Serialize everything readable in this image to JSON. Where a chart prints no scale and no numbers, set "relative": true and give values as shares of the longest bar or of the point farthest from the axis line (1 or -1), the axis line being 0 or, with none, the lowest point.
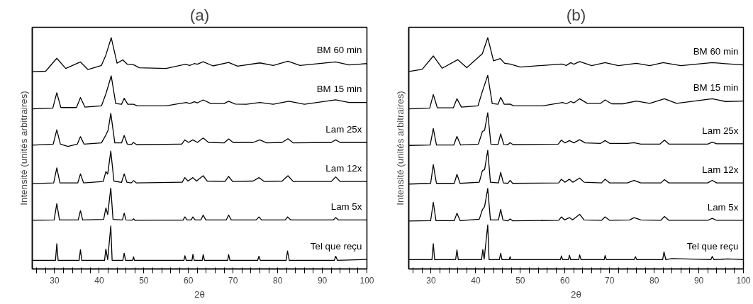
{
  "chart_data": [
    {
      "type": "line",
      "title": "(a)",
      "xlabel": "2θ",
      "ylabel": "Intensité (unités arbitraires)",
      "relative": true,
      "xlim": [
        25,
        100
      ],
      "tick_labels": "x",
      "grid": false,
      "marker": "none",
      "line_style": "solid",
      "xticks": [
        {
          "value": 26,
          "label": null
        },
        {
          "value": 28,
          "label": null
        },
        30,
        {
          "value": 32,
          "label": null
        },
        {
          "value": 34,
          "label": null
        },
        {
          "value": 36,
          "label": null
        },
        {
          "value": 38,
          "label": null
        },
        40,
        {
          "value": 42,
          "label": null
        },
        {
          "value": 44,
          "label": null
        },
        {
          "value": 46,
          "label": null
        },
        {
          "value": 48,
          "label": null
        },
        50,
        {
          "value": 52,
          "label": null
        },
        {
          "value": 54,
          "label": null
        },
        {
          "value": 56,
          "label": null
        },
        {
          "value": 58,
          "label": null
        },
        60,
        {
          "value": 62,
          "label": null
        },
        {
          "value": 64,
          "label": null
        },
        {
          "value": 66,
          "label": null
        },
        {
          "value": 68,
          "label": null
        },
        70,
        {
          "value": 72,
          "label": null
        },
        {
          "value": 74,
          "label": null
        },
        {
          "value": 76,
          "label": null
        },
        {
          "value": 78,
          "label": null
        },
        80,
        {
          "value": 82,
          "label": null
        },
        {
          "value": 84,
          "label": null
        },
        {
          "value": 86,
          "label": null
        },
        {
          "value": 88,
          "label": null
        },
        90,
        {
          "value": 92,
          "label": null
        },
        {
          "value": 94,
          "label": null
        },
        {
          "value": 96,
          "label": null
        },
        {
          "value": 98,
          "label": null
        },
        100
      ],
      "series": [
        {
          "name": "Tel que reçu",
          "color": "#000000",
          "x": [
            25,
            30.2,
            30.5,
            30.8,
            35.5,
            35.8,
            36.1,
            41.2,
            41.5,
            41.9,
            42.6,
            42.9,
            45.3,
            45.6,
            45.9,
            47.5,
            47.7,
            47.9,
            59,
            59.2,
            59.5,
            60.8,
            61,
            61.3,
            63.1,
            63.3,
            63.6,
            68.8,
            69,
            69.3,
            75.5,
            75.8,
            76.1,
            81.9,
            82.2,
            82.6,
            92.7,
            93,
            93.4,
            100
          ],
          "values": [
            0.037,
            0.037,
            0.109,
            0.037,
            0.037,
            0.083,
            0.037,
            0.037,
            0.086,
            0.04,
            0.186,
            0.037,
            0.037,
            0.068,
            0.037,
            0.037,
            0.052,
            0.037,
            0.037,
            0.057,
            0.037,
            0.037,
            0.063,
            0.037,
            0.037,
            0.062,
            0.037,
            0.037,
            0.062,
            0.037,
            0.037,
            0.055,
            0.037,
            0.037,
            0.078,
            0.037,
            0.037,
            0.055,
            0.037,
            0.041
          ]
        },
        {
          "name": "Lam 5x",
          "color": "#000000",
          "x": [
            25,
            29.9,
            30.5,
            31.1,
            35.3,
            35.8,
            36.3,
            41,
            41.5,
            41.9,
            42.6,
            43.1,
            45.2,
            45.6,
            46,
            47.4,
            47.7,
            48,
            58.8,
            59.2,
            59.7,
            60.6,
            61,
            61.5,
            62.8,
            63.3,
            63.9,
            68.5,
            69,
            69.6,
            75.2,
            75.8,
            76.4,
            81.7,
            82.2,
            82.9,
            92.5,
            93,
            93.6,
            100
          ],
          "values": [
            0.21,
            0.212,
            0.282,
            0.212,
            0.212,
            0.252,
            0.212,
            0.214,
            0.264,
            0.235,
            0.35,
            0.214,
            0.212,
            0.241,
            0.212,
            0.211,
            0.217,
            0.21,
            0.211,
            0.225,
            0.212,
            0.212,
            0.225,
            0.212,
            0.212,
            0.233,
            0.212,
            0.212,
            0.233,
            0.212,
            0.212,
            0.225,
            0.212,
            0.212,
            0.225,
            0.212,
            0.212,
            0.222,
            0.212,
            0.212
          ]
        },
        {
          "name": "Lam 12x",
          "color": "#000000",
          "x": [
            25,
            29.8,
            30.5,
            31.2,
            35.2,
            35.8,
            36.5,
            40.9,
            41.5,
            41.9,
            42.6,
            43.3,
            45,
            45.6,
            46.2,
            47.2,
            47.7,
            48.3,
            58.6,
            59.2,
            59.9,
            61,
            61.8,
            63.3,
            64.2,
            68.2,
            69,
            69.9,
            74.5,
            75.8,
            77,
            81,
            82.3,
            83.5,
            92,
            93,
            94,
            100
          ],
          "values": [
            0.369,
            0.372,
            0.437,
            0.372,
            0.372,
            0.411,
            0.372,
            0.378,
            0.421,
            0.41,
            0.51,
            0.38,
            0.374,
            0.411,
            0.375,
            0.372,
            0.382,
            0.372,
            0.375,
            0.395,
            0.38,
            0.395,
            0.38,
            0.403,
            0.38,
            0.378,
            0.4,
            0.378,
            0.38,
            0.395,
            0.378,
            0.38,
            0.403,
            0.378,
            0.378,
            0.398,
            0.378,
            0.378
          ]
        },
        {
          "name": "Lam 25x",
          "color": "#000000",
          "x": [
            25,
            29.7,
            30.5,
            31.3,
            33,
            35.1,
            35.8,
            36.6,
            40.5,
            41.5,
            42,
            42.6,
            43.5,
            45,
            45.6,
            46.3,
            47.2,
            47.7,
            48.4,
            58.5,
            59.2,
            60,
            61,
            62,
            63.3,
            64.5,
            68,
            69,
            70,
            74.5,
            76,
            77.5,
            81,
            82.3,
            83.5,
            92,
            93,
            94,
            100
          ],
          "values": [
            0.535,
            0.54,
            0.602,
            0.54,
            0.53,
            0.54,
            0.572,
            0.54,
            0.545,
            0.579,
            0.6,
            0.673,
            0.545,
            0.545,
            0.577,
            0.54,
            0.538,
            0.547,
            0.537,
            0.54,
            0.558,
            0.547,
            0.558,
            0.547,
            0.566,
            0.547,
            0.545,
            0.562,
            0.547,
            0.547,
            0.558,
            0.545,
            0.547,
            0.563,
            0.545,
            0.547,
            0.558,
            0.547,
            0.547
          ]
        },
        {
          "name": "BM 15 min",
          "color": "#000000",
          "x": [
            25,
            29.6,
            30.5,
            31.4,
            34.9,
            35.8,
            36.8,
            40.5,
            41.5,
            42.7,
            43.7,
            45,
            45.6,
            46.4,
            47.7,
            48.5,
            55,
            59.5,
            60.3,
            61.3,
            62,
            63.3,
            65,
            68,
            69,
            70.5,
            73,
            76,
            79,
            82.5,
            86,
            93,
            96,
            100
          ],
          "values": [
            0.692,
            0.695,
            0.762,
            0.698,
            0.698,
            0.741,
            0.7,
            0.705,
            0.757,
            0.835,
            0.715,
            0.712,
            0.738,
            0.712,
            0.712,
            0.705,
            0.705,
            0.72,
            0.715,
            0.723,
            0.718,
            0.731,
            0.715,
            0.715,
            0.725,
            0.713,
            0.712,
            0.72,
            0.712,
            0.725,
            0.712,
            0.731,
            0.72,
            0.72
          ]
        },
        {
          "name": "BM 60 min",
          "color": "#000000",
          "x": [
            25,
            28,
            30.5,
            32.5,
            35.8,
            37.5,
            40.5,
            41.5,
            42.7,
            44,
            45.3,
            46.3,
            47.7,
            49,
            55,
            59.3,
            60.3,
            61.3,
            62,
            63.3,
            65.5,
            69,
            71,
            76,
            79,
            82.3,
            85,
            93,
            96,
            100
          ],
          "values": [
            0.853,
            0.855,
            0.911,
            0.867,
            0.895,
            0.862,
            0.88,
            0.925,
            1.0,
            0.89,
            0.904,
            0.885,
            0.883,
            0.87,
            0.867,
            0.885,
            0.88,
            0.888,
            0.885,
            0.896,
            0.878,
            0.893,
            0.877,
            0.891,
            0.88,
            0.898,
            0.88,
            0.895,
            0.882,
            0.888
          ]
        }
      ]
    },
    {
      "type": "line",
      "title": "(b)",
      "xlabel": "2θ",
      "ylabel": "Intensité (unités arbitraires)",
      "relative": true,
      "xlim": [
        25,
        100
      ],
      "tick_labels": "x",
      "grid": false,
      "marker": "none",
      "line_style": "solid",
      "xticks": [
        {
          "value": 26,
          "label": null
        },
        {
          "value": 28,
          "label": null
        },
        30,
        {
          "value": 32,
          "label": null
        },
        {
          "value": 34,
          "label": null
        },
        {
          "value": 36,
          "label": null
        },
        {
          "value": 38,
          "label": null
        },
        40,
        {
          "value": 42,
          "label": null
        },
        {
          "value": 44,
          "label": null
        },
        {
          "value": 46,
          "label": null
        },
        {
          "value": 48,
          "label": null
        },
        50,
        {
          "value": 52,
          "label": null
        },
        {
          "value": 54,
          "label": null
        },
        {
          "value": 56,
          "label": null
        },
        {
          "value": 58,
          "label": null
        },
        60,
        {
          "value": 62,
          "label": null
        },
        {
          "value": 64,
          "label": null
        },
        {
          "value": 66,
          "label": null
        },
        {
          "value": 68,
          "label": null
        },
        70,
        {
          "value": 72,
          "label": null
        },
        {
          "value": 74,
          "label": null
        },
        {
          "value": 76,
          "label": null
        },
        {
          "value": 78,
          "label": null
        },
        80,
        {
          "value": 82,
          "label": null
        },
        {
          "value": 84,
          "label": null
        },
        {
          "value": 86,
          "label": null
        },
        {
          "value": 88,
          "label": null
        },
        90,
        {
          "value": 92,
          "label": null
        },
        {
          "value": 94,
          "label": null
        },
        {
          "value": 96,
          "label": null
        },
        {
          "value": 98,
          "label": null
        },
        100
      ],
      "series": [
        {
          "name": "Tel que reçu",
          "color": "#000000",
          "x": [
            25,
            30.2,
            30.5,
            30.8,
            35.5,
            35.8,
            36.1,
            41.3,
            41.6,
            41.9,
            42.7,
            43,
            45.3,
            45.6,
            45.9,
            47.5,
            47.7,
            47.9,
            59,
            59.2,
            59.5,
            60.8,
            61,
            61.3,
            63.1,
            63.3,
            63.6,
            68.8,
            69,
            69.3,
            75.5,
            75.8,
            76.1,
            81.9,
            82.2,
            82.6,
            84,
            92.7,
            93,
            93.4,
            96.5,
            100
          ],
          "values": [
            0.04,
            0.04,
            0.109,
            0.04,
            0.04,
            0.082,
            0.04,
            0.04,
            0.084,
            0.042,
            0.19,
            0.04,
            0.04,
            0.068,
            0.04,
            0.04,
            0.053,
            0.04,
            0.04,
            0.056,
            0.04,
            0.04,
            0.059,
            0.04,
            0.04,
            0.061,
            0.04,
            0.04,
            0.058,
            0.04,
            0.04,
            0.053,
            0.04,
            0.04,
            0.074,
            0.04,
            0.045,
            0.04,
            0.054,
            0.04,
            0.043,
            0.04
          ]
        },
        {
          "name": "Lam 5x",
          "color": "#000000",
          "x": [
            25,
            29.9,
            30.5,
            31.1,
            35.2,
            35.8,
            36.5,
            40.8,
            41.5,
            42,
            42.7,
            43.3,
            45.1,
            45.6,
            46.1,
            47.2,
            47.7,
            48.3,
            58.6,
            59.2,
            59.9,
            61,
            61.7,
            63.3,
            64.3,
            68.2,
            69,
            70,
            74.5,
            75.5,
            77,
            81.5,
            82.3,
            83.3,
            92,
            93,
            94,
            96.5,
            100
          ],
          "values": [
            0.207,
            0.209,
            0.288,
            0.209,
            0.209,
            0.241,
            0.209,
            0.215,
            0.256,
            0.27,
            0.348,
            0.212,
            0.212,
            0.258,
            0.212,
            0.208,
            0.216,
            0.208,
            0.21,
            0.225,
            0.212,
            0.222,
            0.212,
            0.236,
            0.212,
            0.21,
            0.225,
            0.21,
            0.212,
            0.222,
            0.212,
            0.21,
            0.227,
            0.21,
            0.21,
            0.219,
            0.21,
            0.21,
            0.21
          ]
        },
        {
          "name": "Lam 12x",
          "color": "#000000",
          "x": [
            25,
            29.9,
            30.5,
            31.2,
            35.2,
            35.8,
            36.5,
            40.8,
            41.5,
            42,
            42.7,
            43.3,
            45.1,
            45.6,
            46.2,
            47.2,
            47.7,
            48.3,
            58.6,
            59.2,
            60,
            61,
            61.8,
            63.3,
            64.3,
            68.2,
            69,
            70,
            74,
            75.5,
            77,
            81.5,
            82.3,
            83.3,
            92,
            93,
            94,
            100
          ],
          "values": [
            0.367,
            0.37,
            0.451,
            0.37,
            0.37,
            0.409,
            0.37,
            0.375,
            0.425,
            0.43,
            0.513,
            0.375,
            0.372,
            0.418,
            0.372,
            0.37,
            0.383,
            0.37,
            0.372,
            0.388,
            0.375,
            0.388,
            0.375,
            0.393,
            0.375,
            0.372,
            0.388,
            0.372,
            0.372,
            0.383,
            0.372,
            0.372,
            0.386,
            0.372,
            0.372,
            0.383,
            0.372,
            0.372
          ]
        },
        {
          "name": "Lam 25x",
          "color": "#000000",
          "x": [
            25,
            29.8,
            30.5,
            31.2,
            35.1,
            35.8,
            36.6,
            40.6,
            41.5,
            42,
            42.7,
            43.4,
            45,
            45.6,
            46.3,
            47.2,
            47.7,
            48.4,
            58.5,
            59.2,
            60,
            61,
            62,
            63.3,
            64.5,
            68,
            69,
            70,
            74,
            75.5,
            77,
            81.3,
            82.3,
            83.3,
            92,
            93,
            94,
            100
          ],
          "values": [
            0.534,
            0.536,
            0.607,
            0.536,
            0.536,
            0.573,
            0.536,
            0.54,
            0.594,
            0.6,
            0.675,
            0.54,
            0.538,
            0.584,
            0.538,
            0.537,
            0.546,
            0.537,
            0.54,
            0.557,
            0.545,
            0.555,
            0.545,
            0.559,
            0.545,
            0.543,
            0.555,
            0.543,
            0.543,
            0.546,
            0.54,
            0.54,
            0.557,
            0.54,
            0.54,
            0.548,
            0.541,
            0.541
          ]
        },
        {
          "name": "BM 15 min",
          "color": "#000000",
          "x": [
            25,
            29.7,
            30.5,
            31.4,
            35,
            35.8,
            36.8,
            40.5,
            41.5,
            42.7,
            43.7,
            45,
            45.6,
            46.4,
            47.7,
            48.5,
            55,
            59.5,
            60.3,
            61.3,
            62,
            63.3,
            65,
            68,
            69,
            70.5,
            73,
            76,
            79,
            82.3,
            85,
            93,
            96,
            100
          ],
          "values": [
            0.692,
            0.695,
            0.754,
            0.697,
            0.697,
            0.736,
            0.7,
            0.705,
            0.768,
            0.837,
            0.715,
            0.712,
            0.742,
            0.712,
            0.713,
            0.705,
            0.705,
            0.72,
            0.714,
            0.724,
            0.718,
            0.736,
            0.716,
            0.716,
            0.731,
            0.714,
            0.714,
            0.726,
            0.716,
            0.736,
            0.716,
            0.736,
            0.724,
            0.726
          ]
        },
        {
          "name": "BM 60 min",
          "color": "#000000",
          "x": [
            25,
            28,
            30.5,
            32.5,
            36,
            38,
            41.5,
            42.7,
            44,
            45.5,
            46.5,
            47.7,
            50,
            59.3,
            60.3,
            61.3,
            62,
            63.3,
            66,
            69,
            72,
            76,
            79,
            82,
            86,
            93,
            100
          ],
          "values": [
            0.854,
            0.863,
            0.921,
            0.868,
            0.905,
            0.87,
            0.931,
            1.0,
            0.9,
            0.91,
            0.889,
            0.886,
            0.873,
            0.886,
            0.88,
            0.892,
            0.885,
            0.897,
            0.879,
            0.892,
            0.879,
            0.889,
            0.879,
            0.892,
            0.879,
            0.892,
            0.882
          ]
        }
      ]
    }
  ]
}
